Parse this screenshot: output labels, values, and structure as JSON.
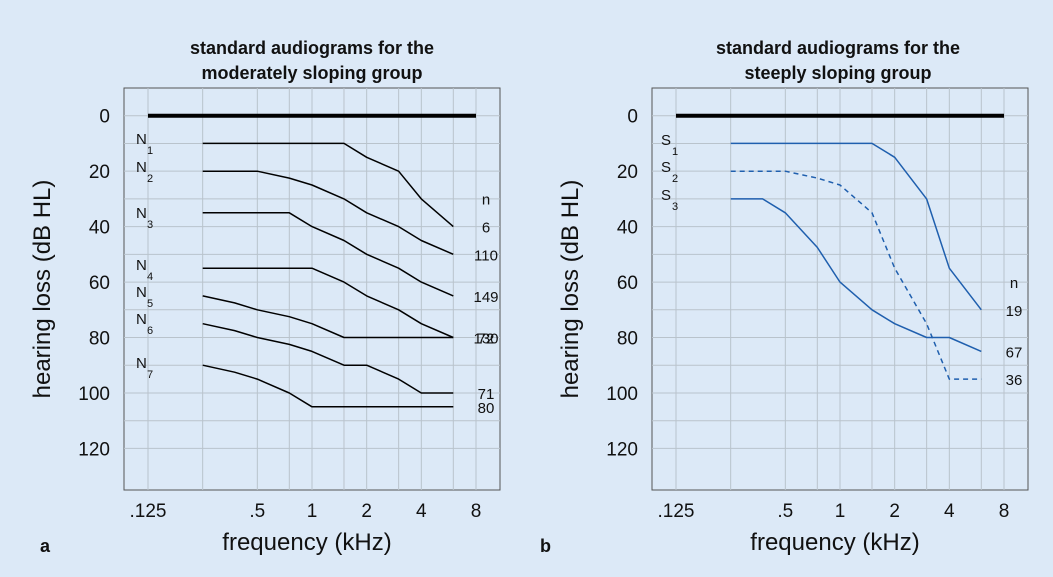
{
  "chart_data": [
    {
      "panel_letter": "a",
      "type": "line",
      "title_line1": "standard audiograms for the",
      "title_line2": "moderately sloping group",
      "xlabel": "frequency (kHz)",
      "ylabel": "hearing loss (dB HL)",
      "x_scale": "log",
      "xlim": [
        0.125,
        8
      ],
      "ylim": [
        135,
        -10
      ],
      "y_inverted": true,
      "x_tick_labels": [
        {
          "x": 0.125,
          "label": ".125"
        },
        {
          "x": 0.5,
          "label": ".5"
        },
        {
          "x": 1,
          "label": "1"
        },
        {
          "x": 2,
          "label": "2"
        },
        {
          "x": 4,
          "label": "4"
        },
        {
          "x": 8,
          "label": "8"
        }
      ],
      "x_grid": [
        0.125,
        0.25,
        0.5,
        0.75,
        1,
        1.5,
        2,
        3,
        4,
        6,
        8
      ],
      "y_ticks": [
        0,
        20,
        40,
        60,
        80,
        100,
        120
      ],
      "y_grid": [
        0,
        10,
        20,
        30,
        40,
        50,
        60,
        70,
        80,
        90,
        100,
        110,
        120
      ],
      "grid": true,
      "reference_line": {
        "y": 0,
        "x": [
          0.125,
          8
        ],
        "color": "#000000"
      },
      "n_header": "n",
      "series_color": "#000000",
      "series": [
        {
          "name": "N",
          "sub": "1",
          "n": "6",
          "dashed": false,
          "x": [
            0.25,
            0.375,
            0.5,
            0.75,
            1,
            1.5,
            2,
            3,
            4,
            6
          ],
          "y": [
            10,
            10,
            10,
            10,
            10,
            10,
            15,
            20,
            30,
            40
          ]
        },
        {
          "name": "N",
          "sub": "2",
          "n": "110",
          "dashed": false,
          "x": [
            0.25,
            0.375,
            0.5,
            0.75,
            1,
            1.5,
            2,
            3,
            4,
            6
          ],
          "y": [
            20,
            20,
            20,
            22.5,
            25,
            30,
            35,
            40,
            45,
            50
          ]
        },
        {
          "name": "N",
          "sub": "3",
          "n": "149",
          "dashed": false,
          "x": [
            0.25,
            0.375,
            0.5,
            0.75,
            1,
            1.5,
            2,
            3,
            4,
            6
          ],
          "y": [
            35,
            35,
            35,
            35,
            40,
            45,
            50,
            55,
            60,
            65
          ]
        },
        {
          "name": "N",
          "sub": "4",
          "n": "130",
          "dashed": false,
          "x": [
            0.25,
            0.375,
            0.5,
            0.75,
            1,
            1.5,
            2,
            3,
            4,
            6
          ],
          "y": [
            55,
            55,
            55,
            55,
            55,
            60,
            65,
            70,
            75,
            80
          ]
        },
        {
          "name": "N",
          "sub": "5",
          "n": "72",
          "dashed": false,
          "x": [
            0.25,
            0.375,
            0.5,
            0.75,
            1,
            1.5,
            2,
            3,
            4,
            6
          ],
          "y": [
            65,
            67.5,
            70,
            72.5,
            75,
            80,
            80,
            80,
            80,
            80
          ]
        },
        {
          "name": "N",
          "sub": "6",
          "n": "71",
          "dashed": false,
          "x": [
            0.25,
            0.375,
            0.5,
            0.75,
            1,
            1.5,
            2,
            3,
            4,
            6
          ],
          "y": [
            75,
            77.5,
            80,
            82.5,
            85,
            90,
            90,
            95,
            100,
            100
          ]
        },
        {
          "name": "N",
          "sub": "7",
          "n": "80",
          "dashed": false,
          "x": [
            0.25,
            0.375,
            0.5,
            0.75,
            1,
            1.5,
            2,
            3,
            4,
            6
          ],
          "y": [
            90,
            92.5,
            95,
            100,
            105,
            105,
            105,
            105,
            105,
            105
          ]
        }
      ]
    },
    {
      "panel_letter": "b",
      "type": "line",
      "title_line1": "standard audiograms for the",
      "title_line2": "steeply sloping group",
      "xlabel": "frequency (kHz)",
      "ylabel": "hearing loss (dB HL)",
      "x_scale": "log",
      "xlim": [
        0.125,
        8
      ],
      "ylim": [
        135,
        -10
      ],
      "y_inverted": true,
      "x_tick_labels": [
        {
          "x": 0.125,
          "label": ".125"
        },
        {
          "x": 0.5,
          "label": ".5"
        },
        {
          "x": 1,
          "label": "1"
        },
        {
          "x": 2,
          "label": "2"
        },
        {
          "x": 4,
          "label": "4"
        },
        {
          "x": 8,
          "label": "8"
        }
      ],
      "x_grid": [
        0.125,
        0.25,
        0.5,
        0.75,
        1,
        1.5,
        2,
        3,
        4,
        6,
        8
      ],
      "y_ticks": [
        0,
        20,
        40,
        60,
        80,
        100,
        120
      ],
      "y_grid": [
        0,
        10,
        20,
        30,
        40,
        50,
        60,
        70,
        80,
        90,
        100,
        110,
        120
      ],
      "grid": true,
      "reference_line": {
        "y": 0,
        "x": [
          0.125,
          8
        ],
        "color": "#000000"
      },
      "n_header": "n",
      "series_color": "#1f5fae",
      "series": [
        {
          "name": "S",
          "sub": "1",
          "n": "19",
          "dashed": false,
          "x": [
            0.25,
            0.375,
            0.5,
            0.75,
            1,
            1.5,
            2,
            3,
            4,
            6
          ],
          "y": [
            10,
            10,
            10,
            10,
            10,
            10,
            15,
            30,
            55,
            70
          ]
        },
        {
          "name": "S",
          "sub": "2",
          "n": "36",
          "dashed": true,
          "x": [
            0.25,
            0.375,
            0.5,
            0.75,
            1,
            1.5,
            2,
            3,
            4,
            6
          ],
          "y": [
            20,
            20,
            20,
            22.5,
            25,
            35,
            55,
            75,
            95,
            95
          ]
        },
        {
          "name": "S",
          "sub": "3",
          "n": "67",
          "dashed": false,
          "x": [
            0.25,
            0.375,
            0.5,
            0.75,
            1,
            1.5,
            2,
            3,
            4,
            6
          ],
          "y": [
            30,
            30,
            35,
            47.5,
            60,
            70,
            75,
            80,
            80,
            85
          ]
        }
      ]
    }
  ]
}
